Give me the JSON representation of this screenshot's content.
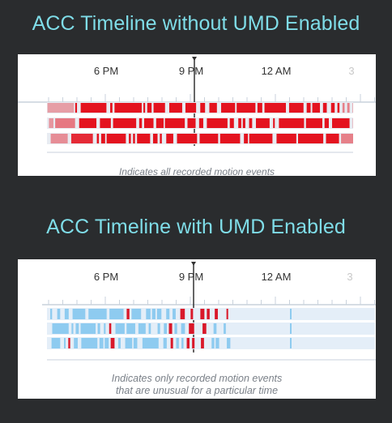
{
  "sections": [
    {
      "title": "ACC Timeline without UMD Enabled",
      "ticks": [
        "6 PM",
        "9 PM",
        "12 AM",
        "3"
      ],
      "caption_lines": [
        "Indicates all recorded motion events"
      ],
      "mode": "all",
      "colors": {
        "event": "#e4131f",
        "event_light": "#f6b0b3",
        "axis": "#c9d2dc",
        "marker": "#333333",
        "band_bg": "#e8ecf2"
      }
    },
    {
      "title": "ACC Timeline with UMD Enabled",
      "ticks": [
        "6 PM",
        "9 PM",
        "12 AM",
        "3"
      ],
      "caption_lines": [
        "Indicates only recorded motion events",
        "that are unusual for a particular time"
      ],
      "mode": "unusual",
      "colors": {
        "usual": "#8ecbf0",
        "unusual": "#d9182a",
        "axis": "#c9d2dc",
        "marker": "#333333",
        "band_bg": "#e4eef8"
      }
    }
  ]
}
